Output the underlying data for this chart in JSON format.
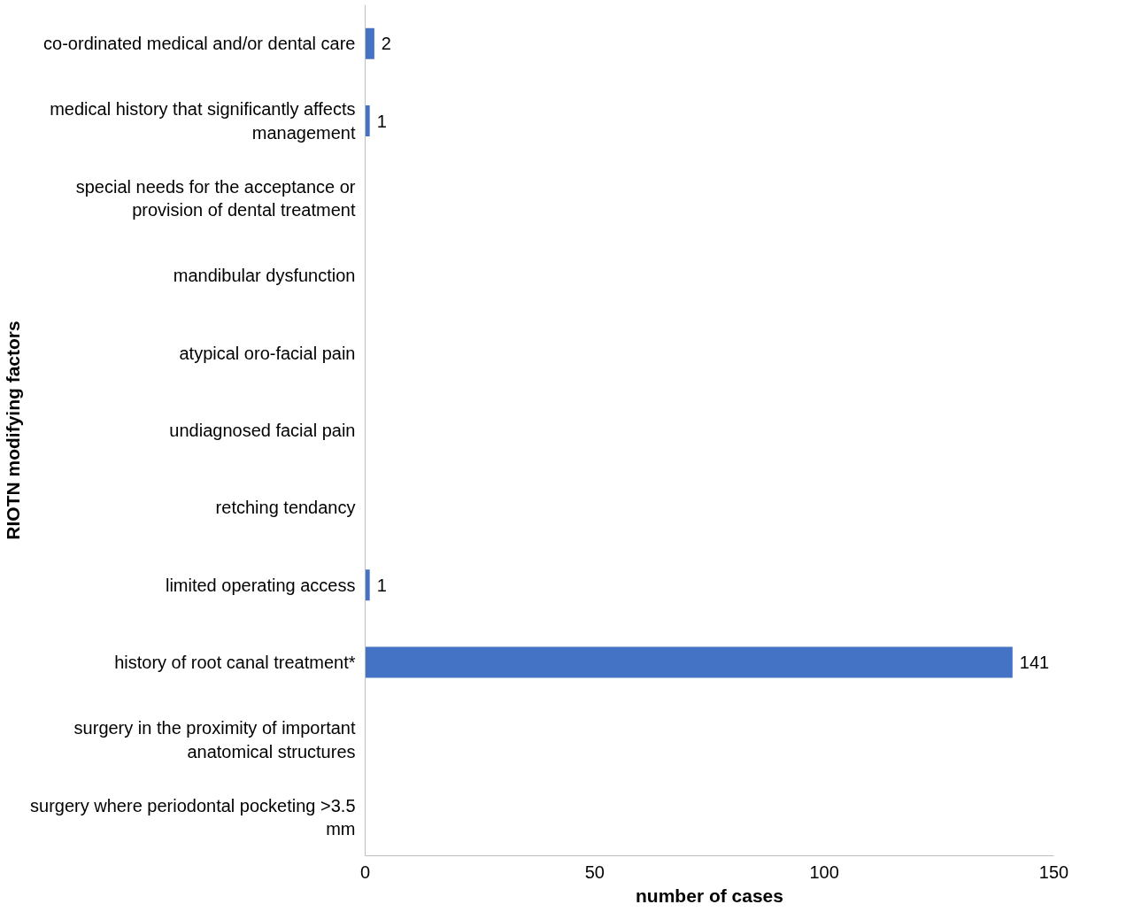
{
  "chart_data": {
    "type": "bar",
    "orientation": "horizontal",
    "xlabel": "number of cases",
    "ylabel": "RIOTN modifying factors",
    "categories": [
      "co-ordinated medical and/or dental care",
      "medical history that significantly affects management",
      "special needs for the acceptance or provision of dental treatment",
      "mandibular dysfunction",
      "atypical oro-facial pain",
      "undiagnosed facial pain",
      "retching tendancy",
      "limited operating access",
      "history of root canal treatment*",
      "surgery in the proximity of important anatomical structures",
      "surgery where periodontal pocketing >3.5 mm"
    ],
    "values": [
      2,
      1,
      0,
      0,
      0,
      0,
      0,
      1,
      141,
      0,
      0
    ],
    "value_labels": [
      "2",
      "1",
      null,
      null,
      null,
      null,
      null,
      "1",
      "141",
      null,
      null
    ],
    "color": "#4472c4",
    "xlim": [
      0,
      150
    ],
    "xticks": [
      0,
      50,
      100,
      150
    ],
    "grid": false
  }
}
